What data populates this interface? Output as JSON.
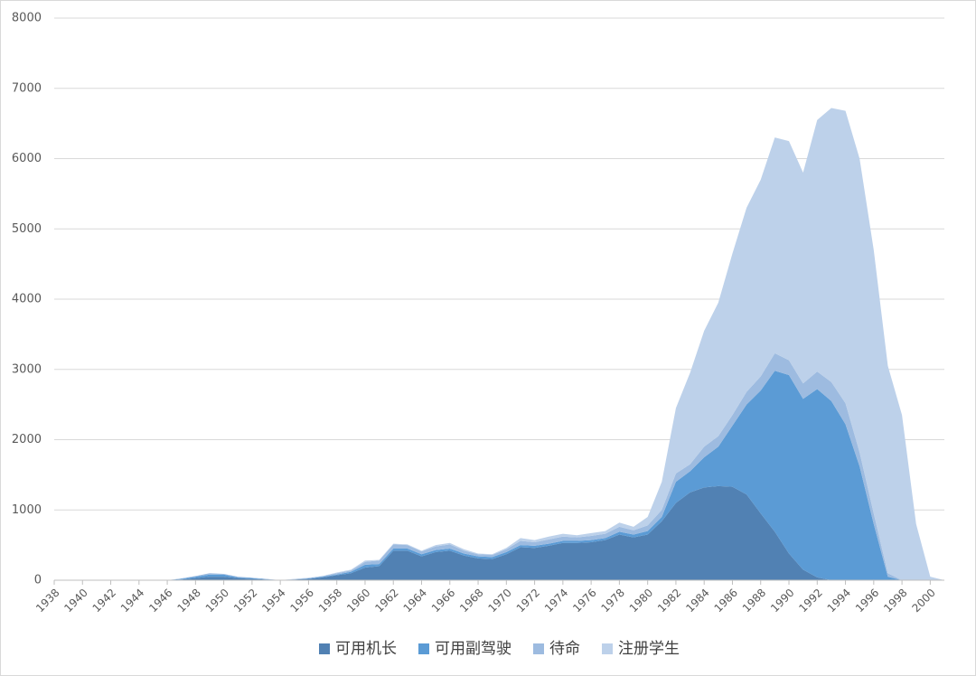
{
  "chart_data": {
    "type": "stacked-area",
    "x": [
      1938,
      1939,
      1940,
      1941,
      1942,
      1943,
      1944,
      1945,
      1946,
      1947,
      1948,
      1949,
      1950,
      1951,
      1952,
      1953,
      1954,
      1955,
      1956,
      1957,
      1958,
      1959,
      1960,
      1961,
      1962,
      1963,
      1964,
      1965,
      1966,
      1967,
      1968,
      1969,
      1970,
      1971,
      1972,
      1973,
      1974,
      1975,
      1976,
      1977,
      1978,
      1979,
      1980,
      1981,
      1982,
      1983,
      1984,
      1985,
      1986,
      1987,
      1988,
      1989,
      1990,
      1991,
      1992,
      1993,
      1994,
      1995,
      1996,
      1997,
      1998,
      1999,
      2000,
      2001
    ],
    "xlim": [
      1938,
      2001
    ],
    "xticks": [
      1938,
      1940,
      1942,
      1944,
      1946,
      1948,
      1950,
      1952,
      1954,
      1956,
      1958,
      1960,
      1962,
      1964,
      1966,
      1968,
      1970,
      1972,
      1974,
      1976,
      1978,
      1980,
      1982,
      1984,
      1986,
      1988,
      1990,
      1992,
      1994,
      1996,
      1998,
      2000
    ],
    "ylim": [
      0,
      8000
    ],
    "yticks": [
      0,
      1000,
      2000,
      3000,
      4000,
      5000,
      6000,
      7000,
      8000
    ],
    "grid": true,
    "legend": "bottom",
    "series": [
      {
        "name": "可用机长",
        "color": "#5181b3",
        "values": [
          0,
          0,
          0,
          0,
          0,
          0,
          0,
          0,
          0,
          10,
          30,
          50,
          50,
          30,
          20,
          10,
          0,
          10,
          20,
          40,
          70,
          100,
          180,
          200,
          420,
          420,
          340,
          400,
          420,
          350,
          310,
          300,
          370,
          470,
          460,
          490,
          530,
          530,
          540,
          570,
          650,
          610,
          650,
          840,
          1100,
          1250,
          1320,
          1340,
          1330,
          1220,
          950,
          690,
          380,
          150,
          40,
          0,
          0,
          0,
          0,
          0,
          0,
          0,
          0,
          0
        ]
      },
      {
        "name": "可用副驾驶",
        "color": "#5b9bd5",
        "values": [
          0,
          0,
          0,
          0,
          0,
          0,
          0,
          0,
          0,
          10,
          20,
          30,
          30,
          10,
          10,
          5,
          0,
          0,
          5,
          10,
          10,
          20,
          40,
          30,
          30,
          30,
          30,
          30,
          30,
          30,
          30,
          30,
          30,
          30,
          30,
          30,
          30,
          30,
          30,
          30,
          40,
          40,
          50,
          60,
          300,
          300,
          430,
          560,
          870,
          1280,
          1750,
          2290,
          2540,
          2430,
          2680,
          2550,
          2220,
          1620,
          800,
          50,
          0,
          0,
          0,
          0
        ]
      },
      {
        "name": "待命",
        "color": "#9dbbe0",
        "values": [
          0,
          0,
          0,
          0,
          0,
          0,
          0,
          0,
          0,
          5,
          10,
          20,
          10,
          10,
          5,
          5,
          0,
          5,
          5,
          10,
          20,
          20,
          40,
          50,
          60,
          50,
          40,
          50,
          60,
          40,
          30,
          30,
          40,
          60,
          50,
          60,
          60,
          50,
          60,
          60,
          70,
          60,
          80,
          100,
          120,
          100,
          150,
          150,
          150,
          180,
          200,
          250,
          210,
          220,
          250,
          270,
          300,
          200,
          150,
          50,
          0,
          0,
          0,
          0
        ]
      },
      {
        "name": "注册学生",
        "color": "#bdd1ea",
        "values": [
          0,
          0,
          0,
          0,
          0,
          0,
          0,
          0,
          0,
          0,
          0,
          0,
          0,
          0,
          0,
          0,
          0,
          5,
          5,
          0,
          10,
          10,
          20,
          10,
          10,
          10,
          10,
          20,
          20,
          20,
          10,
          10,
          20,
          40,
          30,
          40,
          40,
          30,
          40,
          40,
          60,
          50,
          120,
          400,
          930,
          1300,
          1650,
          1900,
          2300,
          2620,
          2800,
          3070,
          3120,
          3000,
          3580,
          3900,
          4160,
          4180,
          3750,
          2950,
          2350,
          800,
          50,
          0
        ]
      }
    ]
  }
}
